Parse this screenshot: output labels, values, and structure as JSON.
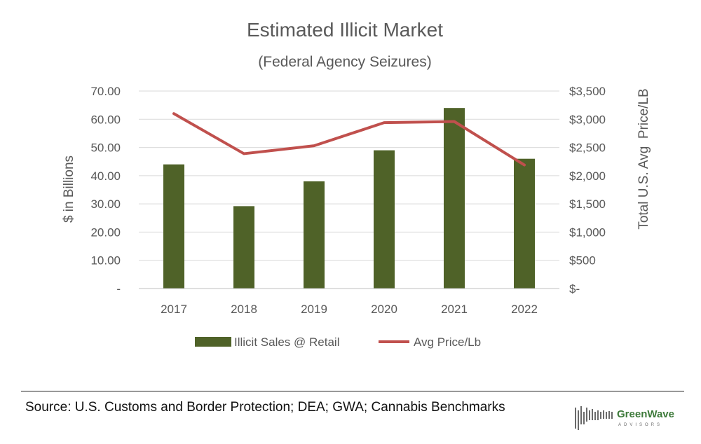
{
  "chart_data": {
    "type": "bar",
    "title": "Estimated Illicit Market",
    "subtitle": "(Federal Agency Seizures)",
    "categories": [
      "2017",
      "2018",
      "2019",
      "2020",
      "2021",
      "2022"
    ],
    "series": [
      {
        "name": "Illicit Sales @ Retail",
        "kind": "bar",
        "axis": "left",
        "color": "#4f6228",
        "values": [
          44.0,
          29.2,
          38.0,
          49.0,
          64.0,
          46.0
        ]
      },
      {
        "name": "Avg Price/Lb",
        "kind": "line",
        "axis": "right",
        "color": "#c0504d",
        "values": [
          3100,
          2390,
          2530,
          2940,
          2960,
          2190
        ]
      }
    ],
    "ylabel": "$ in Billions",
    "y2label": "Total U.S. Avg  Price/LB",
    "ylim": [
      0,
      70
    ],
    "y2lim": [
      0,
      3500
    ],
    "yticks": [
      "-",
      "10.00",
      "20.00",
      "30.00",
      "40.00",
      "50.00",
      "60.00",
      "70.00"
    ],
    "y2ticks": [
      "$-",
      "$500",
      "$1,000",
      "$1,500",
      "$2,000",
      "$2,500",
      "$3,000",
      "$3,500"
    ],
    "grid": true,
    "legend_position": "bottom"
  },
  "footer": {
    "source": "Source: U.S. Customs and Border Protection; DEA; GWA; Cannabis Benchmarks",
    "logo_name": "GreenWave",
    "logo_sub": "ADVISORS"
  },
  "colors": {
    "bar": "#4f6228",
    "line": "#c0504d",
    "grid": "#d9d9d9",
    "text": "#595959",
    "logo_green": "#3d7a3a"
  }
}
